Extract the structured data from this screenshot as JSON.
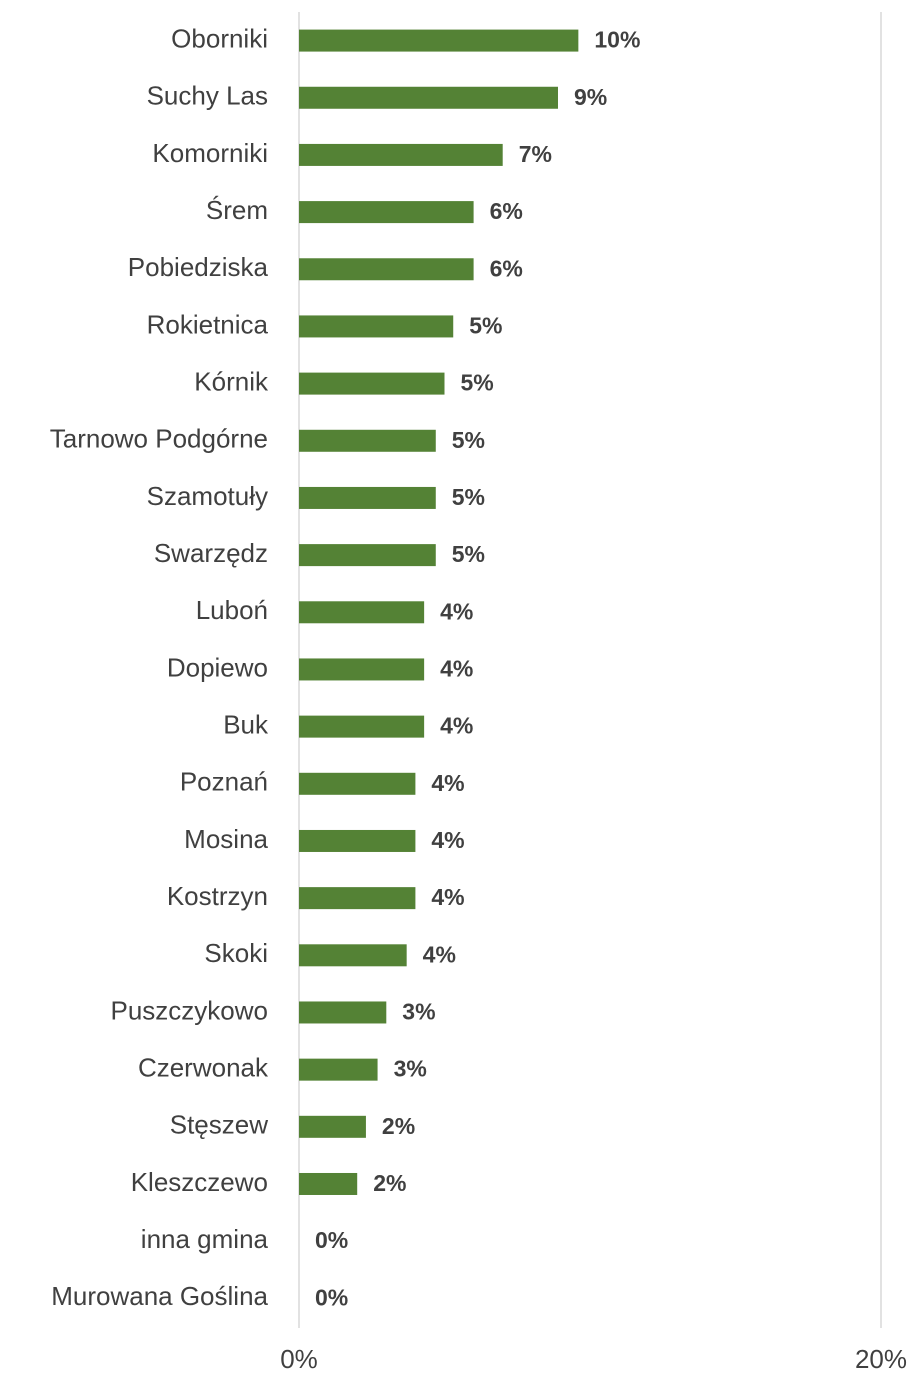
{
  "chart_data": {
    "type": "bar",
    "orientation": "horizontal",
    "title": "",
    "xlabel": "",
    "ylabel": "",
    "xlim": [
      0,
      20
    ],
    "x_ticks": [
      "0%",
      "20%"
    ],
    "grid": true,
    "bar_color": "#548235",
    "categories": [
      "Oborniki",
      "Suchy Las",
      "Komorniki",
      "Śrem",
      "Pobiedziska",
      "Rokietnica",
      "Kórnik",
      "Tarnowo Podgórne",
      "Szamotuły",
      "Swarzędz",
      "Luboń",
      "Dopiewo",
      "Buk",
      "Poznań",
      "Mosina",
      "Kostrzyn",
      "Skoki",
      "Puszczykowo",
      "Czerwonak",
      "Stęszew",
      "Kleszczewo",
      "inna gmina",
      "Murowana Goślina"
    ],
    "values": [
      9.6,
      8.9,
      7.0,
      6.0,
      6.0,
      5.3,
      5.0,
      4.7,
      4.7,
      4.7,
      4.3,
      4.3,
      4.3,
      4.0,
      4.0,
      4.0,
      3.7,
      3.0,
      2.7,
      2.3,
      2.0,
      0,
      0
    ],
    "labels": [
      "10%",
      "9%",
      "7%",
      "6%",
      "6%",
      "5%",
      "5%",
      "5%",
      "5%",
      "5%",
      "4%",
      "4%",
      "4%",
      "4%",
      "4%",
      "4%",
      "4%",
      "3%",
      "3%",
      "2%",
      "2%",
      "0%",
      "0%"
    ]
  }
}
